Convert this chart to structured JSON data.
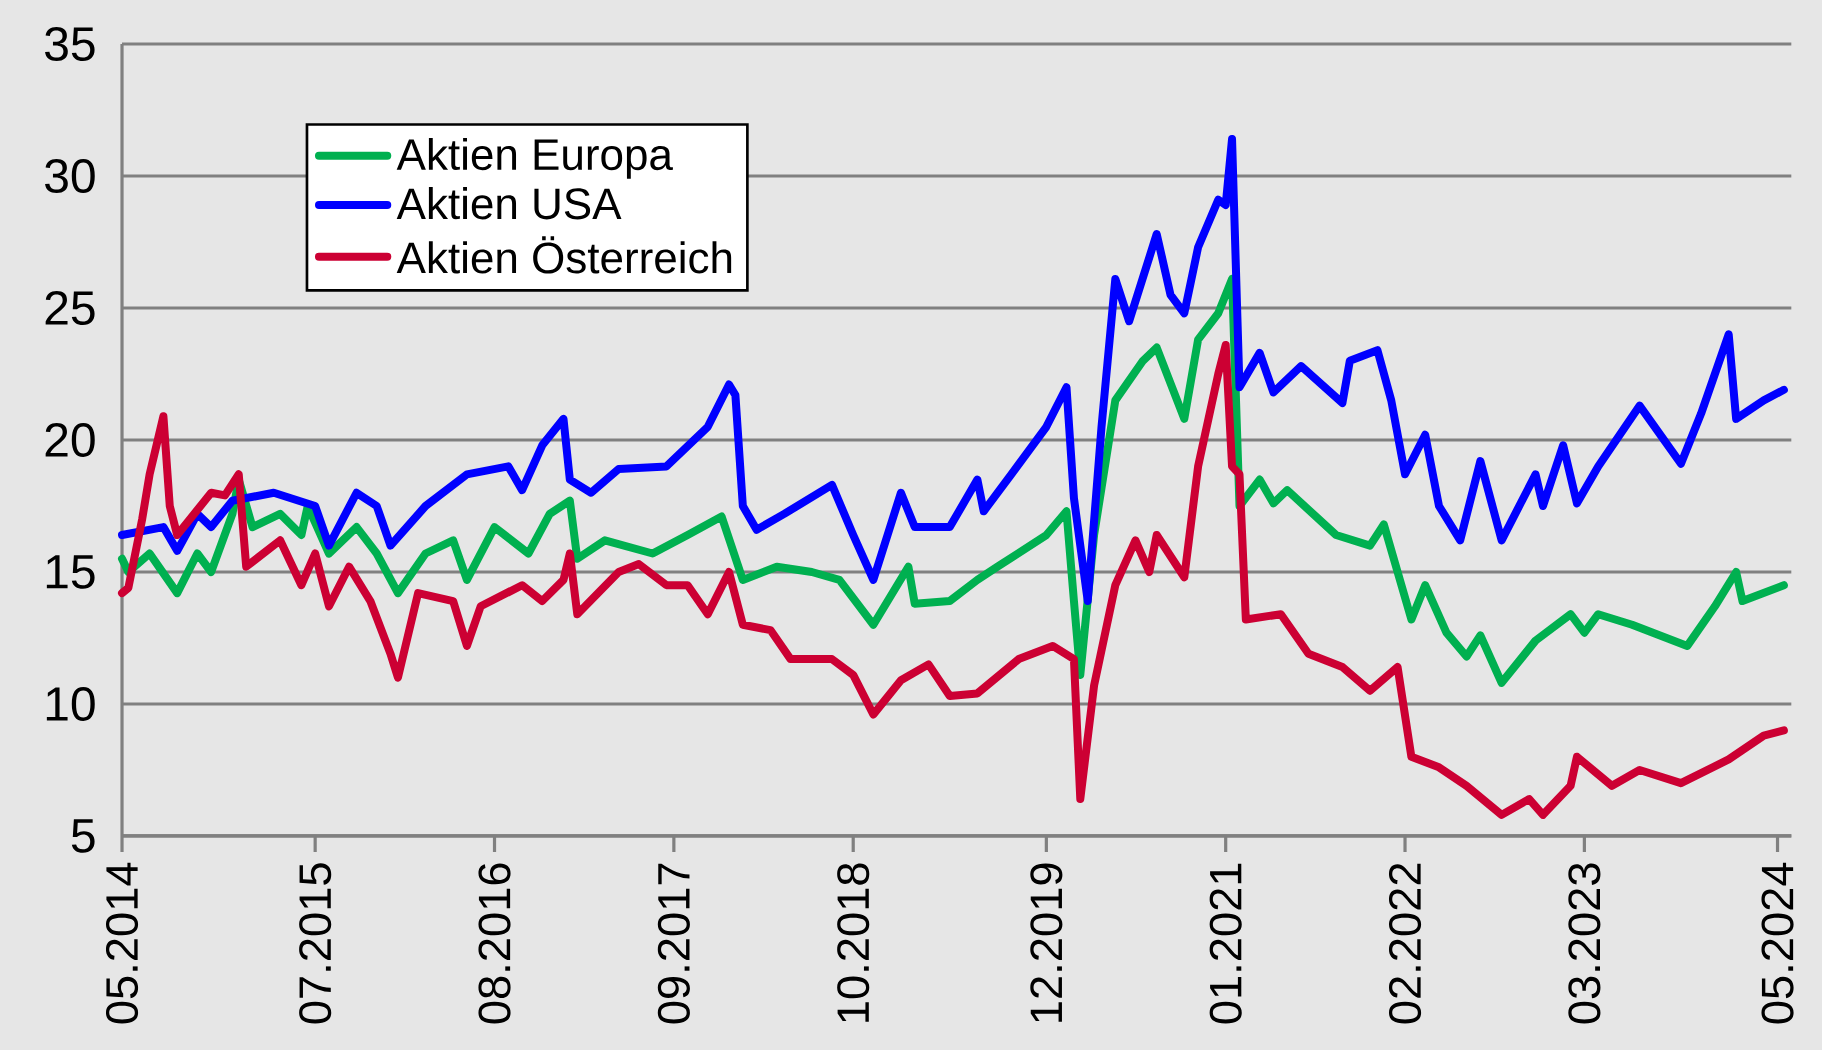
{
  "chart_data": {
    "type": "line",
    "legend": "top left",
    "grid": "y",
    "line_style": "solid",
    "xlim": [
      "2014-05",
      "2024-06"
    ],
    "ylim": [
      5,
      35
    ],
    "yticks": [
      5,
      10,
      15,
      20,
      25,
      30,
      35
    ],
    "xticks": [
      {
        "value": "2014-05",
        "label": "05.2014"
      },
      {
        "value": "2015-07",
        "label": "07.2015"
      },
      {
        "value": "2016-08",
        "label": "08.2016"
      },
      {
        "value": "2017-09",
        "label": "09.2017"
      },
      {
        "value": "2018-10",
        "label": "10.2018"
      },
      {
        "value": "2019-12",
        "label": "12.2019"
      },
      {
        "value": "2021-01",
        "label": "01.2021"
      },
      {
        "value": "2022-02",
        "label": "02.2022"
      },
      {
        "value": "2023-03",
        "label": "03.2023"
      },
      {
        "value": "2024-05",
        "label": "05.2024"
      }
    ],
    "series": [
      {
        "name": "Aktien Europa",
        "color": "#00b050",
        "x": [
          "2014-05-01",
          "2014-05-15",
          "2014-07-01",
          "2014-09-01",
          "2014-10-15",
          "2014-11-15",
          "2015-01-01",
          "2015-01-15",
          "2015-02-15",
          "2015-04-15",
          "2015-06-01",
          "2015-06-15",
          "2015-08-01",
          "2015-10-01",
          "2015-11-15",
          "2016-01-01",
          "2016-03-01",
          "2016-05-01",
          "2016-06-01",
          "2016-08-01",
          "2016-10-15",
          "2016-12-01",
          "2017-01-15",
          "2017-02-01",
          "2017-04-01",
          "2017-07-15",
          "2017-10-01",
          "2017-12-15",
          "2018-02-01",
          "2018-04-15",
          "2018-07-01",
          "2018-09-01",
          "2018-11-15",
          "2019-02-01",
          "2019-02-15",
          "2019-05-01",
          "2019-07-01",
          "2019-08-15",
          "2019-12-01",
          "2020-01-15",
          "2020-02-01",
          "2020-02-15",
          "2020-03-15",
          "2020-05-01",
          "2020-07-01",
          "2020-08-01",
          "2020-10-01",
          "2020-11-01",
          "2020-12-15",
          "2021-01-15",
          "2021-02-01",
          "2021-03-15",
          "2021-04-15",
          "2021-05-15",
          "2021-09-01",
          "2021-11-15",
          "2021-12-15",
          "2022-02-15",
          "2022-03-15",
          "2022-05-01",
          "2022-06-15",
          "2022-07-15",
          "2022-09-01",
          "2022-11-15",
          "2023-02-01",
          "2023-03-01",
          "2023-04-01",
          "2023-06-15",
          "2023-10-15",
          "2023-12-15",
          "2024-02-01",
          "2024-02-15",
          "2024-05-15"
        ],
        "values": [
          15.5,
          15.0,
          15.7,
          14.2,
          15.7,
          15.0,
          17.2,
          18.5,
          16.7,
          17.2,
          16.4,
          17.5,
          15.7,
          16.7,
          15.7,
          14.2,
          15.7,
          16.2,
          14.7,
          16.7,
          15.7,
          17.2,
          17.7,
          15.5,
          16.2,
          15.7,
          16.4,
          17.1,
          14.7,
          15.2,
          15.0,
          14.7,
          13.0,
          15.2,
          13.8,
          13.9,
          14.7,
          15.2,
          16.4,
          17.3,
          13.9,
          11.1,
          16.4,
          21.5,
          23.0,
          23.5,
          20.8,
          23.8,
          24.8,
          26.1,
          17.5,
          18.5,
          17.6,
          18.1,
          16.4,
          16.0,
          16.8,
          13.2,
          14.5,
          12.7,
          11.8,
          12.6,
          10.8,
          12.4,
          13.4,
          12.7,
          13.4,
          13.0,
          12.2,
          13.7,
          15.0,
          13.9,
          14.5
        ]
      },
      {
        "name": "Aktien USA",
        "color": "#0000ff",
        "x": [
          "2014-05-01",
          "2014-08-01",
          "2014-09-01",
          "2014-10-15",
          "2014-11-15",
          "2015-01-01",
          "2015-04-01",
          "2015-07-01",
          "2015-08-01",
          "2015-10-01",
          "2015-11-15",
          "2015-12-15",
          "2016-03-01",
          "2016-06-01",
          "2016-09-01",
          "2016-10-01",
          "2016-11-15",
          "2017-01-01",
          "2017-01-15",
          "2017-03-01",
          "2017-05-01",
          "2017-08-15",
          "2017-11-15",
          "2018-01-01",
          "2018-01-15",
          "2018-02-01",
          "2018-03-01",
          "2018-05-01",
          "2018-08-15",
          "2018-10-01",
          "2018-11-15",
          "2019-01-15",
          "2019-02-15",
          "2019-05-01",
          "2019-07-01",
          "2019-07-15",
          "2019-09-15",
          "2019-12-01",
          "2020-01-15",
          "2020-02-01",
          "2020-03-01",
          "2020-04-01",
          "2020-05-01",
          "2020-06-01",
          "2020-08-01",
          "2020-09-01",
          "2020-10-01",
          "2020-11-01",
          "2020-12-15",
          "2021-01-01",
          "2021-01-15",
          "2021-02-01",
          "2021-03-15",
          "2021-04-15",
          "2021-06-15",
          "2021-09-15",
          "2021-10-01",
          "2021-12-01",
          "2022-01-01",
          "2022-02-01",
          "2022-03-15",
          "2022-04-15",
          "2022-06-01",
          "2022-07-15",
          "2022-09-01",
          "2022-11-15",
          "2022-12-01",
          "2023-01-15",
          "2023-02-15",
          "2023-04-01",
          "2023-07-01",
          "2023-10-01",
          "2023-11-15",
          "2024-01-15",
          "2024-02-01",
          "2024-04-01",
          "2024-05-15"
        ],
        "values": [
          16.4,
          16.7,
          15.8,
          17.2,
          16.7,
          17.7,
          18.0,
          17.5,
          16.0,
          18.0,
          17.5,
          16.0,
          17.5,
          18.7,
          19.0,
          18.1,
          19.8,
          20.8,
          18.5,
          18.0,
          18.9,
          19.0,
          20.5,
          22.1,
          21.7,
          17.5,
          16.6,
          17.2,
          18.3,
          16.4,
          14.7,
          18.0,
          16.7,
          16.7,
          18.5,
          17.3,
          18.7,
          20.5,
          22.0,
          17.8,
          13.9,
          20.5,
          26.1,
          24.5,
          27.8,
          25.5,
          24.8,
          27.3,
          29.1,
          28.9,
          31.4,
          22.0,
          23.3,
          21.8,
          22.8,
          21.4,
          23.0,
          23.4,
          21.5,
          18.7,
          20.2,
          17.5,
          16.2,
          19.2,
          16.2,
          18.7,
          17.5,
          19.8,
          17.6,
          19.0,
          21.3,
          19.1,
          21.0,
          24.0,
          20.8,
          21.5,
          21.9
        ]
      },
      {
        "name": "Aktien Österreich",
        "color": "#cc0033",
        "x": [
          "2014-05-01",
          "2014-05-15",
          "2014-06-15",
          "2014-07-01",
          "2014-08-01",
          "2014-08-15",
          "2014-09-01",
          "2014-11-15",
          "2014-12-15",
          "2015-01-15",
          "2015-02-01",
          "2015-04-15",
          "2015-06-01",
          "2015-07-01",
          "2015-08-01",
          "2015-09-15",
          "2015-11-01",
          "2015-12-15",
          "2016-01-01",
          "2016-02-15",
          "2016-05-01",
          "2016-06-01",
          "2016-07-01",
          "2016-10-01",
          "2016-11-15",
          "2017-01-01",
          "2017-01-15",
          "2017-02-01",
          "2017-05-01",
          "2017-06-15",
          "2017-08-15",
          "2017-10-01",
          "2017-11-15",
          "2018-01-01",
          "2018-02-01",
          "2018-04-01",
          "2018-05-15",
          "2018-08-15",
          "2018-10-01",
          "2018-11-15",
          "2019-01-15",
          "2019-03-15",
          "2019-05-01",
          "2019-07-01",
          "2019-10-01",
          "2019-12-15",
          "2020-02-01",
          "2020-02-15",
          "2020-03-15",
          "2020-05-01",
          "2020-06-15",
          "2020-07-15",
          "2020-08-01",
          "2020-10-01",
          "2020-11-01",
          "2020-12-15",
          "2021-01-01",
          "2021-01-15",
          "2021-02-01",
          "2021-02-15",
          "2021-05-01",
          "2021-07-01",
          "2021-09-15",
          "2021-11-15",
          "2022-01-15",
          "2022-02-15",
          "2022-04-15",
          "2022-06-15",
          "2022-09-01",
          "2022-11-01",
          "2022-12-01",
          "2023-02-01",
          "2023-02-15",
          "2023-05-01",
          "2023-07-01",
          "2023-10-01",
          "2024-01-15",
          "2024-04-01",
          "2024-05-15"
        ],
        "values": [
          14.2,
          14.4,
          17.0,
          18.7,
          20.9,
          17.5,
          16.4,
          18.0,
          17.9,
          18.7,
          15.2,
          16.2,
          14.5,
          15.7,
          13.7,
          15.2,
          13.9,
          11.9,
          11.0,
          14.2,
          13.9,
          12.2,
          13.7,
          14.5,
          13.9,
          14.7,
          15.7,
          13.4,
          15.0,
          15.3,
          14.5,
          14.5,
          13.4,
          15.0,
          13.0,
          12.8,
          11.7,
          11.7,
          11.1,
          9.6,
          10.9,
          11.5,
          10.3,
          10.4,
          11.7,
          12.2,
          11.7,
          6.4,
          10.7,
          14.5,
          16.2,
          15.0,
          16.4,
          14.8,
          19.0,
          22.5,
          23.6,
          19.0,
          18.7,
          13.2,
          13.4,
          11.9,
          11.4,
          10.5,
          11.4,
          8.0,
          7.6,
          6.9,
          5.8,
          6.4,
          5.8,
          6.9,
          8.0,
          6.9,
          7.5,
          7.0,
          7.9,
          8.8,
          9.0
        ]
      }
    ]
  }
}
